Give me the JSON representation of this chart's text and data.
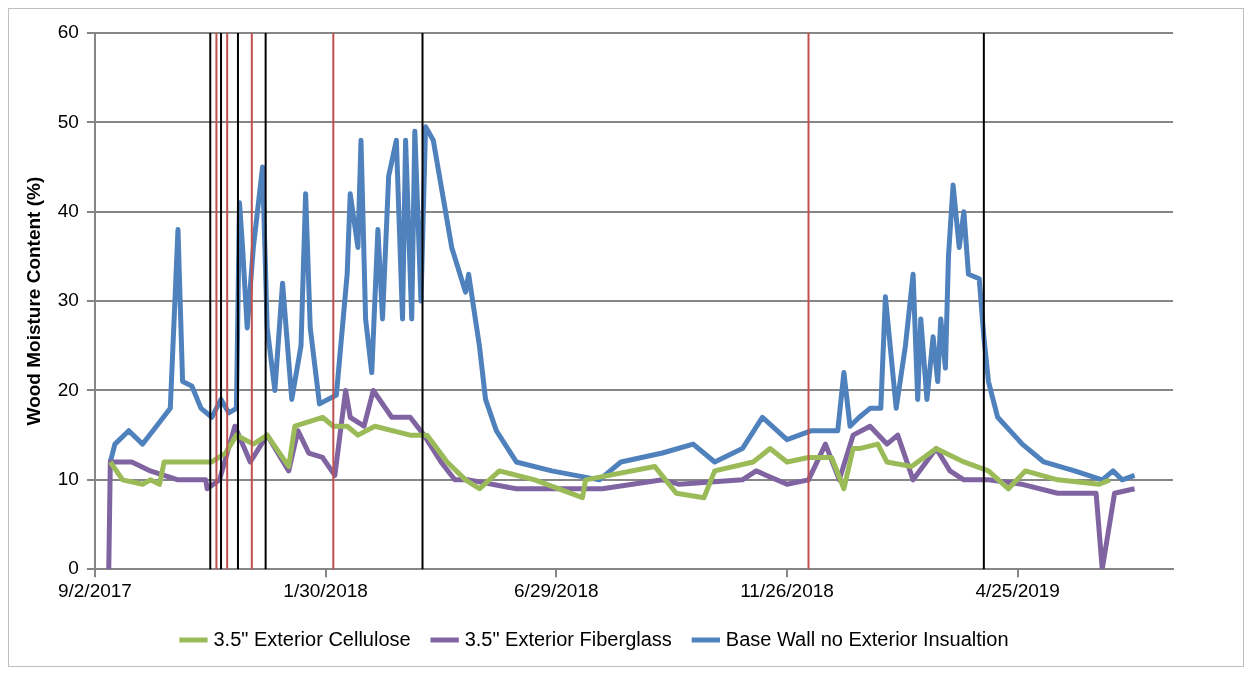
{
  "chart_data": {
    "type": "line",
    "ylabel": "Wood Moisture Content (%)",
    "xlim": [
      "2017-09-02",
      "2019-08-04"
    ],
    "xticks": [
      {
        "value": "2017-09-02",
        "label": "9/2/2017"
      },
      {
        "value": "2018-01-30",
        "label": "1/30/2018"
      },
      {
        "value": "2018-06-29",
        "label": "6/29/2018"
      },
      {
        "value": "2018-11-26",
        "label": "11/26/2018"
      },
      {
        "value": "2019-04-25",
        "label": "4/25/2019"
      }
    ],
    "ylim": [
      0,
      60
    ],
    "yticks": [
      0,
      10,
      20,
      30,
      40,
      50,
      60
    ],
    "grid": "y",
    "legend": "bottom",
    "line_style": "solid",
    "series": [
      {
        "name": "3.5\" Exterior Cellulose",
        "color": "#9bbb59",
        "x": [
          "2017-09-12",
          "2017-09-20",
          "2017-10-03",
          "2017-10-08",
          "2017-10-14",
          "2017-10-17",
          "2017-10-30",
          "2017-11-17",
          "2017-11-26",
          "2017-12-03",
          "2017-12-14",
          "2017-12-23",
          "2018-01-06",
          "2018-01-10",
          "2018-01-28",
          "2018-02-04",
          "2018-02-13",
          "2018-02-20",
          "2018-03-03",
          "2018-03-26",
          "2018-04-06",
          "2018-04-19",
          "2018-05-01",
          "2018-05-10",
          "2018-05-23",
          "2018-06-15",
          "2018-07-16",
          "2018-07-18",
          "2018-09-01",
          "2018-09-15",
          "2018-10-03",
          "2018-10-10",
          "2018-11-04",
          "2018-11-15",
          "2018-11-26",
          "2018-12-10",
          "2018-12-25",
          "2019-01-02",
          "2019-01-08",
          "2019-01-12",
          "2019-01-24",
          "2019-01-30",
          "2019-02-15",
          "2019-03-03",
          "2019-03-21",
          "2019-04-06",
          "2019-04-19",
          "2019-04-30",
          "2019-05-21",
          "2019-06-17",
          "2019-06-24"
        ],
        "values": [
          12,
          10,
          9.5,
          10,
          9.5,
          12,
          12,
          12,
          13,
          15,
          14,
          15,
          11.5,
          16,
          17,
          16,
          16,
          15,
          16,
          15,
          15,
          12,
          10,
          9,
          11,
          10,
          8,
          10,
          11.5,
          8.5,
          8,
          11,
          12,
          13.5,
          12,
          12.5,
          12.5,
          9,
          13.5,
          13.5,
          14,
          12,
          11.5,
          13.5,
          12,
          11,
          9,
          11,
          10,
          9.5,
          10
        ]
      },
      {
        "name": "3.5\" Exterior Fiberglass",
        "color": "#8064a2",
        "x": [
          "2017-09-11",
          "2017-09-12",
          "2017-09-26",
          "2017-10-08",
          "2017-10-26",
          "2017-11-13",
          "2017-11-14",
          "2017-11-22",
          "2017-12-02",
          "2017-12-12",
          "2017-12-23",
          "2018-01-06",
          "2018-01-12",
          "2018-01-19",
          "2018-01-28",
          "2018-02-05",
          "2018-02-12",
          "2018-02-15",
          "2018-02-24",
          "2018-03-02",
          "2018-03-14",
          "2018-03-26",
          "2018-04-04",
          "2018-04-15",
          "2018-04-24",
          "2018-05-03",
          "2018-06-03",
          "2018-07-29",
          "2018-09-06",
          "2018-09-17",
          "2018-10-28",
          "2018-11-06",
          "2018-11-26",
          "2018-12-10",
          "2018-12-21",
          "2018-12-30",
          "2019-01-08",
          "2019-01-19",
          "2019-01-30",
          "2019-02-06",
          "2019-02-16",
          "2019-03-03",
          "2019-03-12",
          "2019-03-21",
          "2019-04-06",
          "2019-04-28",
          "2019-05-21",
          "2019-06-15",
          "2019-06-19",
          "2019-06-27",
          "2019-07-10"
        ],
        "values": [
          0,
          12,
          12,
          11,
          10,
          10,
          9,
          10,
          16,
          12,
          15,
          11,
          15.5,
          13,
          12.5,
          10.5,
          20,
          17,
          16,
          20,
          17,
          17,
          15,
          12,
          10,
          10,
          9,
          9,
          10,
          9.5,
          10,
          11,
          9.5,
          10,
          14,
          10,
          15,
          16,
          14,
          15,
          10,
          13.5,
          11,
          10,
          10,
          9.5,
          8.5,
          8.5,
          0,
          8.5,
          9
        ]
      },
      {
        "name": "Base Wall no Exterior Insualtion",
        "color": "#4f81bd",
        "x": [
          "2017-09-12",
          "2017-09-15",
          "2017-09-24",
          "2017-10-03",
          "2017-10-12",
          "2017-10-21",
          "2017-10-26",
          "2017-10-29",
          "2017-11-04",
          "2017-11-10",
          "2017-11-17",
          "2017-11-23",
          "2017-11-28",
          "2017-12-03",
          "2017-12-05",
          "2017-12-07",
          "2017-12-10",
          "2017-12-14",
          "2017-12-20",
          "2017-12-23",
          "2017-12-28",
          "2018-01-02",
          "2018-01-08",
          "2018-01-14",
          "2018-01-17",
          "2018-01-20",
          "2018-01-26",
          "2018-02-06",
          "2018-02-13",
          "2018-02-15",
          "2018-02-20",
          "2018-02-22",
          "2018-02-25",
          "2018-03-01",
          "2018-03-05",
          "2018-03-08",
          "2018-03-12",
          "2018-03-17",
          "2018-03-21",
          "2018-03-23",
          "2018-03-27",
          "2018-03-29",
          "2018-04-02",
          "2018-04-05",
          "2018-04-10",
          "2018-04-17",
          "2018-04-22",
          "2018-05-01",
          "2018-05-03",
          "2018-05-10",
          "2018-05-14",
          "2018-05-21",
          "2018-06-03",
          "2018-06-26",
          "2018-07-27",
          "2018-08-10",
          "2018-09-06",
          "2018-09-26",
          "2018-10-10",
          "2018-10-28",
          "2018-11-10",
          "2018-11-26",
          "2018-12-12",
          "2018-12-29",
          "2019-01-02",
          "2019-01-06",
          "2019-01-12",
          "2019-01-19",
          "2019-01-26",
          "2019-01-29",
          "2019-02-05",
          "2019-02-11",
          "2019-02-16",
          "2019-02-19",
          "2019-02-21",
          "2019-02-25",
          "2019-03-01",
          "2019-03-04",
          "2019-03-06",
          "2019-03-09",
          "2019-03-11",
          "2019-03-14",
          "2019-03-18",
          "2019-03-21",
          "2019-03-24",
          "2019-03-31",
          "2019-04-03",
          "2019-04-06",
          "2019-04-12",
          "2019-04-28",
          "2019-05-12",
          "2019-06-01",
          "2019-06-19",
          "2019-06-26",
          "2019-07-02",
          "2019-07-10"
        ],
        "values": [
          12,
          14,
          15.5,
          14,
          16,
          18,
          38,
          21,
          20.5,
          18,
          17,
          19,
          17.5,
          18,
          41,
          36,
          27,
          36,
          45,
          27,
          20,
          32,
          19,
          25,
          42,
          27,
          18.5,
          19.5,
          33,
          42,
          36,
          48,
          28,
          22,
          38,
          28,
          44,
          48,
          28,
          48,
          28,
          49,
          30,
          49.5,
          48,
          41,
          36,
          31,
          33,
          25,
          19,
          15.5,
          12,
          11,
          10,
          12,
          13,
          14,
          12,
          13.5,
          17,
          14.5,
          15.5,
          15.5,
          22,
          16,
          17,
          18,
          18,
          30.5,
          18,
          25,
          33,
          19,
          28,
          19,
          26,
          21,
          28,
          22.5,
          35,
          43,
          36,
          40,
          33,
          32.5,
          26,
          21,
          17,
          14,
          12,
          11,
          10,
          11,
          10,
          10.5
        ]
      }
    ],
    "ref_lines": [
      {
        "axis": "x",
        "value": "2017-11-16",
        "color": "#000000"
      },
      {
        "axis": "x",
        "value": "2017-11-20",
        "color": "#c0504d"
      },
      {
        "axis": "x",
        "value": "2017-11-23",
        "color": "#000000"
      },
      {
        "axis": "x",
        "value": "2017-11-27",
        "color": "#c0504d"
      },
      {
        "axis": "x",
        "value": "2017-12-04",
        "color": "#000000"
      },
      {
        "axis": "x",
        "value": "2017-12-13",
        "color": "#c0504d"
      },
      {
        "axis": "x",
        "value": "2017-12-22",
        "color": "#000000"
      },
      {
        "axis": "x",
        "value": "2018-02-04",
        "color": "#c0504d"
      },
      {
        "axis": "x",
        "value": "2018-04-03",
        "color": "#000000"
      },
      {
        "axis": "x",
        "value": "2018-12-10",
        "color": "#c0504d"
      },
      {
        "axis": "x",
        "value": "2019-04-03",
        "color": "#000000"
      }
    ]
  }
}
